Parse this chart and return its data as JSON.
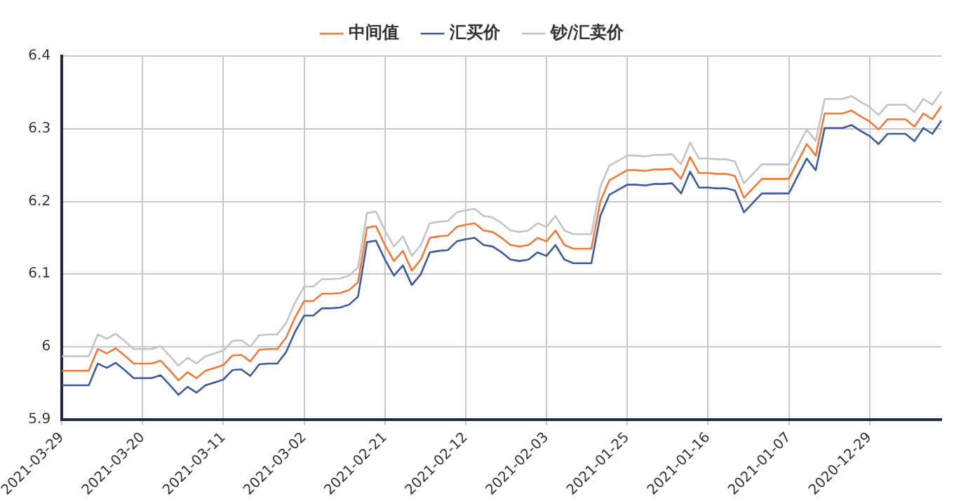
{
  "chart_data": {
    "type": "line",
    "legend": "top",
    "grid": true,
    "marker": "none",
    "line_style": "solid",
    "categories": [
      "2021-03-29",
      null,
      null,
      null,
      null,
      null,
      null,
      null,
      null,
      "2021-03-20",
      null,
      null,
      null,
      null,
      null,
      null,
      null,
      null,
      "2021-03-11",
      null,
      null,
      null,
      null,
      null,
      null,
      null,
      null,
      "2021-03-02",
      null,
      null,
      null,
      null,
      null,
      null,
      null,
      null,
      "2021-02-21",
      null,
      null,
      null,
      null,
      null,
      null,
      null,
      null,
      "2021-02-12",
      null,
      null,
      null,
      null,
      null,
      null,
      null,
      null,
      "2021-02-03",
      null,
      null,
      null,
      null,
      null,
      null,
      null,
      null,
      "2021-01-25",
      null,
      null,
      null,
      null,
      null,
      null,
      null,
      null,
      "2021-01-16",
      null,
      null,
      null,
      null,
      null,
      null,
      null,
      null,
      "2021-01-07",
      null,
      null,
      null,
      null,
      null,
      null,
      null,
      null,
      "2020-12-29",
      null,
      null,
      null,
      null,
      null,
      null,
      null,
      null
    ],
    "ylim": [
      5.9,
      6.4
    ],
    "yticks": [
      5.9,
      6,
      6.1,
      6.2,
      6.3,
      6.4
    ],
    "series": [
      {
        "name": "中间值",
        "color": "#f07a3a",
        "values": [
          5.967,
          5.967,
          5.967,
          5.967,
          5.997,
          5.991,
          5.998,
          5.988,
          5.977,
          5.977,
          5.977,
          5.981,
          5.968,
          5.954,
          5.965,
          5.957,
          5.967,
          5.971,
          5.975,
          5.988,
          5.989,
          5.98,
          5.996,
          5.997,
          5.997,
          6.013,
          6.041,
          6.063,
          6.063,
          6.073,
          6.073,
          6.074,
          6.078,
          6.089,
          6.164,
          6.166,
          6.14,
          6.118,
          6.132,
          6.105,
          6.12,
          6.15,
          6.152,
          6.153,
          6.165,
          6.168,
          6.17,
          6.16,
          6.158,
          6.15,
          6.14,
          6.138,
          6.14,
          6.15,
          6.145,
          6.16,
          6.14,
          6.135,
          6.135,
          6.135,
          6.2,
          6.229,
          6.236,
          6.243,
          6.243,
          6.242,
          6.244,
          6.244,
          6.245,
          6.231,
          6.261,
          6.239,
          6.239,
          6.238,
          6.238,
          6.235,
          6.205,
          6.218,
          6.231,
          6.231,
          6.231,
          6.231,
          6.255,
          6.279,
          6.263,
          6.321,
          6.321,
          6.321,
          6.325,
          6.317,
          6.31,
          6.299,
          6.313,
          6.313,
          6.313,
          6.303,
          6.321,
          6.313,
          6.331
        ]
      },
      {
        "name": "汇买价",
        "color": "#3d5a9e",
        "values": [
          5.947,
          5.947,
          5.947,
          5.947,
          5.977,
          5.971,
          5.978,
          5.968,
          5.957,
          5.957,
          5.957,
          5.961,
          5.948,
          5.934,
          5.945,
          5.937,
          5.947,
          5.951,
          5.955,
          5.968,
          5.969,
          5.96,
          5.976,
          5.977,
          5.977,
          5.993,
          6.021,
          6.043,
          6.043,
          6.053,
          6.053,
          6.054,
          6.058,
          6.069,
          6.144,
          6.146,
          6.12,
          6.098,
          6.112,
          6.085,
          6.1,
          6.13,
          6.132,
          6.133,
          6.145,
          6.148,
          6.15,
          6.14,
          6.138,
          6.13,
          6.12,
          6.118,
          6.12,
          6.13,
          6.125,
          6.14,
          6.12,
          6.115,
          6.115,
          6.115,
          6.18,
          6.209,
          6.216,
          6.223,
          6.223,
          6.222,
          6.224,
          6.224,
          6.225,
          6.211,
          6.241,
          6.219,
          6.219,
          6.218,
          6.218,
          6.215,
          6.185,
          6.198,
          6.211,
          6.211,
          6.211,
          6.211,
          6.235,
          6.259,
          6.243,
          6.301,
          6.301,
          6.301,
          6.305,
          6.297,
          6.29,
          6.279,
          6.293,
          6.293,
          6.293,
          6.283,
          6.301,
          6.293,
          6.311
        ]
      },
      {
        "name": "钞/汇卖价",
        "color": "#c4c4c4",
        "values": [
          5.987,
          5.987,
          5.987,
          5.987,
          6.017,
          6.011,
          6.018,
          6.008,
          5.997,
          5.997,
          5.997,
          6.001,
          5.988,
          5.974,
          5.985,
          5.977,
          5.987,
          5.991,
          5.995,
          6.008,
          6.009,
          6.0,
          6.016,
          6.017,
          6.017,
          6.033,
          6.061,
          6.083,
          6.083,
          6.093,
          6.093,
          6.094,
          6.098,
          6.109,
          6.184,
          6.186,
          6.16,
          6.138,
          6.152,
          6.125,
          6.14,
          6.17,
          6.172,
          6.173,
          6.185,
          6.188,
          6.19,
          6.18,
          6.178,
          6.17,
          6.16,
          6.158,
          6.16,
          6.17,
          6.165,
          6.18,
          6.16,
          6.155,
          6.155,
          6.155,
          6.22,
          6.249,
          6.256,
          6.263,
          6.263,
          6.262,
          6.264,
          6.264,
          6.265,
          6.251,
          6.281,
          6.259,
          6.259,
          6.258,
          6.258,
          6.255,
          6.225,
          6.238,
          6.251,
          6.251,
          6.251,
          6.251,
          6.275,
          6.299,
          6.283,
          6.341,
          6.341,
          6.341,
          6.345,
          6.337,
          6.33,
          6.319,
          6.333,
          6.333,
          6.333,
          6.323,
          6.341,
          6.333,
          6.351
        ]
      }
    ]
  }
}
